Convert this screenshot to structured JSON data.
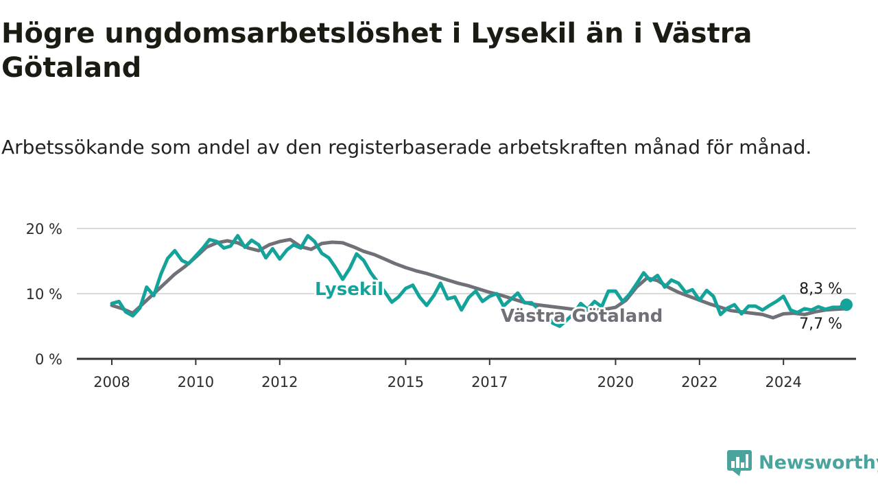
{
  "title": "Högre ungdomsarbetslöshet i Lysekil än i Västra Götaland",
  "subtitle": "Arbetssökande som andel av den registerbaserade arbetskraften månad för månad.",
  "brand": {
    "name": "Newsworthy"
  },
  "colors": {
    "lysekil": "#14a39a",
    "vastra": "#707078",
    "grid": "#d9d9d9",
    "axis": "#333333"
  },
  "chart_data": {
    "type": "line",
    "title": "Högre ungdomsarbetslöshet i Lysekil än i Västra Götaland",
    "subtitle": "Arbetssökande som andel av den registerbaserade arbetskraften månad för månad.",
    "x_unit": "year (decimal)",
    "xlim": [
      2008,
      2025.6
    ],
    "ylim": [
      0,
      20
    ],
    "x_ticks": [
      {
        "value": 2008,
        "label": "2008"
      },
      {
        "value": 2010,
        "label": "2010"
      },
      {
        "value": 2012,
        "label": "2012"
      },
      {
        "value": 2015,
        "label": "2015"
      },
      {
        "value": 2017,
        "label": "2017"
      },
      {
        "value": 2020,
        "label": "2020"
      },
      {
        "value": 2022,
        "label": "2022"
      },
      {
        "value": 2024,
        "label": "2024"
      }
    ],
    "y_ticks": [
      {
        "value": 0,
        "label": "0 %"
      },
      {
        "value": 10,
        "label": "10 %"
      },
      {
        "value": 20,
        "label": "20 %"
      }
    ],
    "grid": true,
    "series": [
      {
        "name": "Västra Götaland",
        "color": "#707078",
        "end_label": "7,7 %",
        "points": [
          [
            2008.0,
            8.2
          ],
          [
            2008.25,
            7.7
          ],
          [
            2008.5,
            7.0
          ],
          [
            2008.75,
            8.5
          ],
          [
            2009.0,
            10.0
          ],
          [
            2009.25,
            11.5
          ],
          [
            2009.5,
            13.0
          ],
          [
            2009.75,
            14.2
          ],
          [
            2010.0,
            15.6
          ],
          [
            2010.25,
            17.1
          ],
          [
            2010.5,
            17.8
          ],
          [
            2010.75,
            18.1
          ],
          [
            2011.0,
            17.8
          ],
          [
            2011.25,
            17.0
          ],
          [
            2011.5,
            16.6
          ],
          [
            2011.75,
            17.5
          ],
          [
            2012.0,
            18.0
          ],
          [
            2012.25,
            18.3
          ],
          [
            2012.5,
            17.2
          ],
          [
            2012.75,
            16.8
          ],
          [
            2013.0,
            17.7
          ],
          [
            2013.25,
            17.9
          ],
          [
            2013.5,
            17.8
          ],
          [
            2013.75,
            17.2
          ],
          [
            2014.0,
            16.5
          ],
          [
            2014.25,
            16.0
          ],
          [
            2014.5,
            15.3
          ],
          [
            2014.75,
            14.6
          ],
          [
            2015.0,
            14.0
          ],
          [
            2015.25,
            13.5
          ],
          [
            2015.5,
            13.1
          ],
          [
            2015.75,
            12.6
          ],
          [
            2016.0,
            12.1
          ],
          [
            2016.25,
            11.6
          ],
          [
            2016.5,
            11.2
          ],
          [
            2016.75,
            10.7
          ],
          [
            2017.0,
            10.2
          ],
          [
            2017.25,
            9.8
          ],
          [
            2017.5,
            9.3
          ],
          [
            2017.75,
            8.8
          ],
          [
            2018.0,
            8.4
          ],
          [
            2018.25,
            8.2
          ],
          [
            2018.5,
            8.0
          ],
          [
            2018.75,
            7.8
          ],
          [
            2019.0,
            7.6
          ],
          [
            2019.25,
            7.5
          ],
          [
            2019.5,
            7.5
          ],
          [
            2019.75,
            7.6
          ],
          [
            2020.0,
            7.9
          ],
          [
            2020.25,
            9.0
          ],
          [
            2020.5,
            11.0
          ],
          [
            2020.75,
            12.4
          ],
          [
            2021.0,
            12.0
          ],
          [
            2021.25,
            11.0
          ],
          [
            2021.5,
            10.2
          ],
          [
            2021.75,
            9.6
          ],
          [
            2022.0,
            9.0
          ],
          [
            2022.25,
            8.4
          ],
          [
            2022.5,
            7.9
          ],
          [
            2022.75,
            7.4
          ],
          [
            2023.0,
            7.2
          ],
          [
            2023.25,
            7.0
          ],
          [
            2023.5,
            6.8
          ],
          [
            2023.75,
            6.3
          ],
          [
            2024.0,
            6.9
          ],
          [
            2024.25,
            7.0
          ],
          [
            2024.5,
            6.8
          ],
          [
            2024.75,
            7.2
          ],
          [
            2025.0,
            7.5
          ],
          [
            2025.25,
            7.6
          ],
          [
            2025.5,
            7.7
          ]
        ]
      },
      {
        "name": "Lysekil",
        "color": "#14a39a",
        "end_label": "8,3 %",
        "points": [
          [
            2008.0,
            8.5
          ],
          [
            2008.17,
            8.8
          ],
          [
            2008.33,
            7.2
          ],
          [
            2008.5,
            6.6
          ],
          [
            2008.67,
            7.8
          ],
          [
            2008.83,
            11.0
          ],
          [
            2009.0,
            9.7
          ],
          [
            2009.17,
            13.0
          ],
          [
            2009.33,
            15.4
          ],
          [
            2009.5,
            16.6
          ],
          [
            2009.67,
            15.1
          ],
          [
            2009.83,
            14.6
          ],
          [
            2010.0,
            15.8
          ],
          [
            2010.17,
            17.0
          ],
          [
            2010.33,
            18.3
          ],
          [
            2010.5,
            18.0
          ],
          [
            2010.67,
            17.0
          ],
          [
            2010.83,
            17.3
          ],
          [
            2011.0,
            18.9
          ],
          [
            2011.17,
            17.1
          ],
          [
            2011.33,
            18.2
          ],
          [
            2011.5,
            17.5
          ],
          [
            2011.67,
            15.5
          ],
          [
            2011.83,
            16.9
          ],
          [
            2012.0,
            15.3
          ],
          [
            2012.17,
            16.7
          ],
          [
            2012.33,
            17.5
          ],
          [
            2012.5,
            17.0
          ],
          [
            2012.67,
            18.9
          ],
          [
            2012.83,
            18.0
          ],
          [
            2013.0,
            16.2
          ],
          [
            2013.17,
            15.5
          ],
          [
            2013.33,
            14.0
          ],
          [
            2013.5,
            12.2
          ],
          [
            2013.67,
            13.9
          ],
          [
            2013.83,
            16.1
          ],
          [
            2014.0,
            15.1
          ],
          [
            2014.17,
            13.2
          ],
          [
            2014.33,
            11.8
          ],
          [
            2014.5,
            10.3
          ],
          [
            2014.67,
            8.7
          ],
          [
            2014.83,
            9.5
          ],
          [
            2015.0,
            10.8
          ],
          [
            2015.17,
            11.3
          ],
          [
            2015.33,
            9.5
          ],
          [
            2015.5,
            8.2
          ],
          [
            2015.67,
            9.7
          ],
          [
            2015.83,
            11.6
          ],
          [
            2016.0,
            9.2
          ],
          [
            2016.17,
            9.5
          ],
          [
            2016.33,
            7.5
          ],
          [
            2016.5,
            9.4
          ],
          [
            2016.67,
            10.4
          ],
          [
            2016.83,
            8.8
          ],
          [
            2017.0,
            9.6
          ],
          [
            2017.17,
            10.0
          ],
          [
            2017.33,
            8.1
          ],
          [
            2017.5,
            9.1
          ],
          [
            2017.67,
            10.1
          ],
          [
            2017.83,
            8.6
          ],
          [
            2018.0,
            8.6
          ],
          [
            2018.17,
            7.6
          ],
          [
            2018.33,
            7.0
          ],
          [
            2018.5,
            5.5
          ],
          [
            2018.67,
            5.0
          ],
          [
            2018.83,
            5.9
          ],
          [
            2019.0,
            6.9
          ],
          [
            2019.17,
            8.5
          ],
          [
            2019.33,
            7.6
          ],
          [
            2019.5,
            8.8
          ],
          [
            2019.67,
            8.0
          ],
          [
            2019.83,
            10.4
          ],
          [
            2020.0,
            10.4
          ],
          [
            2020.17,
            8.8
          ],
          [
            2020.33,
            9.9
          ],
          [
            2020.5,
            11.5
          ],
          [
            2020.67,
            13.2
          ],
          [
            2020.83,
            12.0
          ],
          [
            2021.0,
            12.8
          ],
          [
            2021.17,
            11.0
          ],
          [
            2021.33,
            12.1
          ],
          [
            2021.5,
            11.6
          ],
          [
            2021.67,
            10.2
          ],
          [
            2021.83,
            10.6
          ],
          [
            2022.0,
            9.0
          ],
          [
            2022.17,
            10.5
          ],
          [
            2022.33,
            9.6
          ],
          [
            2022.5,
            6.8
          ],
          [
            2022.67,
            7.8
          ],
          [
            2022.83,
            8.3
          ],
          [
            2023.0,
            6.9
          ],
          [
            2023.17,
            8.1
          ],
          [
            2023.33,
            8.1
          ],
          [
            2023.5,
            7.5
          ],
          [
            2023.67,
            8.2
          ],
          [
            2023.83,
            8.8
          ],
          [
            2024.0,
            9.6
          ],
          [
            2024.17,
            7.5
          ],
          [
            2024.33,
            7.1
          ],
          [
            2024.5,
            7.7
          ],
          [
            2024.67,
            7.5
          ],
          [
            2024.83,
            8.0
          ],
          [
            2025.0,
            7.6
          ],
          [
            2025.17,
            7.9
          ],
          [
            2025.33,
            7.9
          ],
          [
            2025.5,
            8.3
          ]
        ]
      }
    ]
  }
}
